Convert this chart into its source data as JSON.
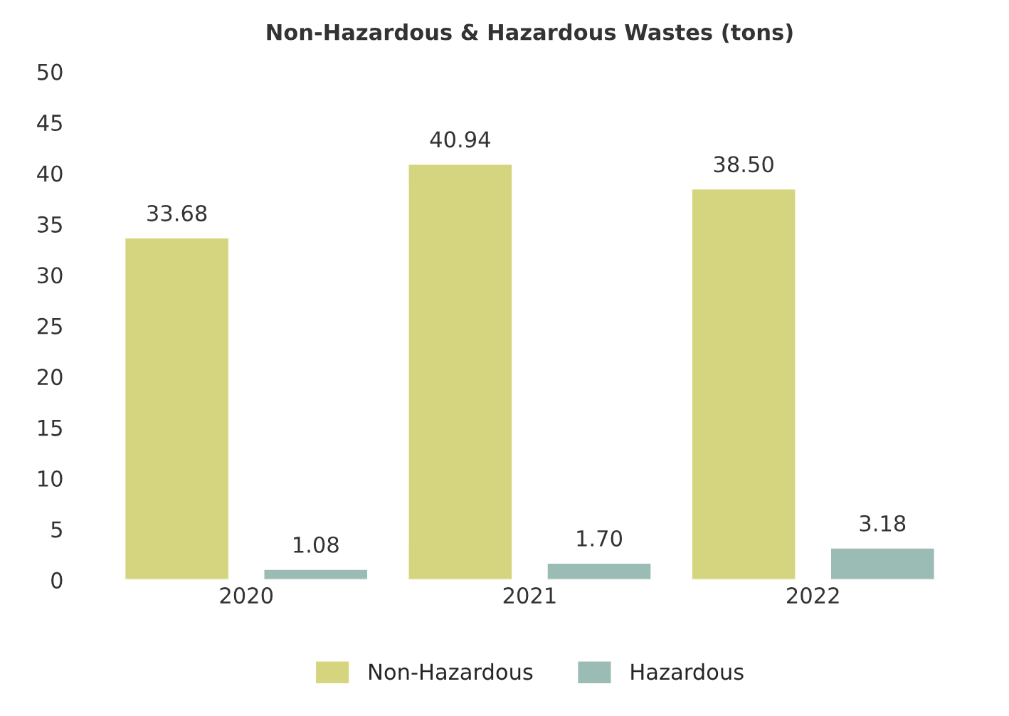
{
  "chart_data": {
    "type": "bar",
    "title": "Non-Hazardous & Hazardous Wastes (tons)",
    "categories": [
      "2020",
      "2021",
      "2022"
    ],
    "series": [
      {
        "name": "Non-Hazardous",
        "color": "#d6d57f",
        "values": [
          33.68,
          40.94,
          38.5
        ],
        "value_labels": [
          "33.68",
          "40.94",
          "38.50"
        ]
      },
      {
        "name": "Hazardous",
        "color": "#9bbcb5",
        "values": [
          1.08,
          1.7,
          3.18
        ],
        "value_labels": [
          "1.08",
          "1.70",
          "3.18"
        ]
      }
    ],
    "ylim": [
      0,
      50
    ],
    "yticks": [
      0,
      5,
      10,
      15,
      20,
      25,
      30,
      35,
      40,
      45,
      50
    ],
    "grid": false,
    "legend": "bottom"
  }
}
